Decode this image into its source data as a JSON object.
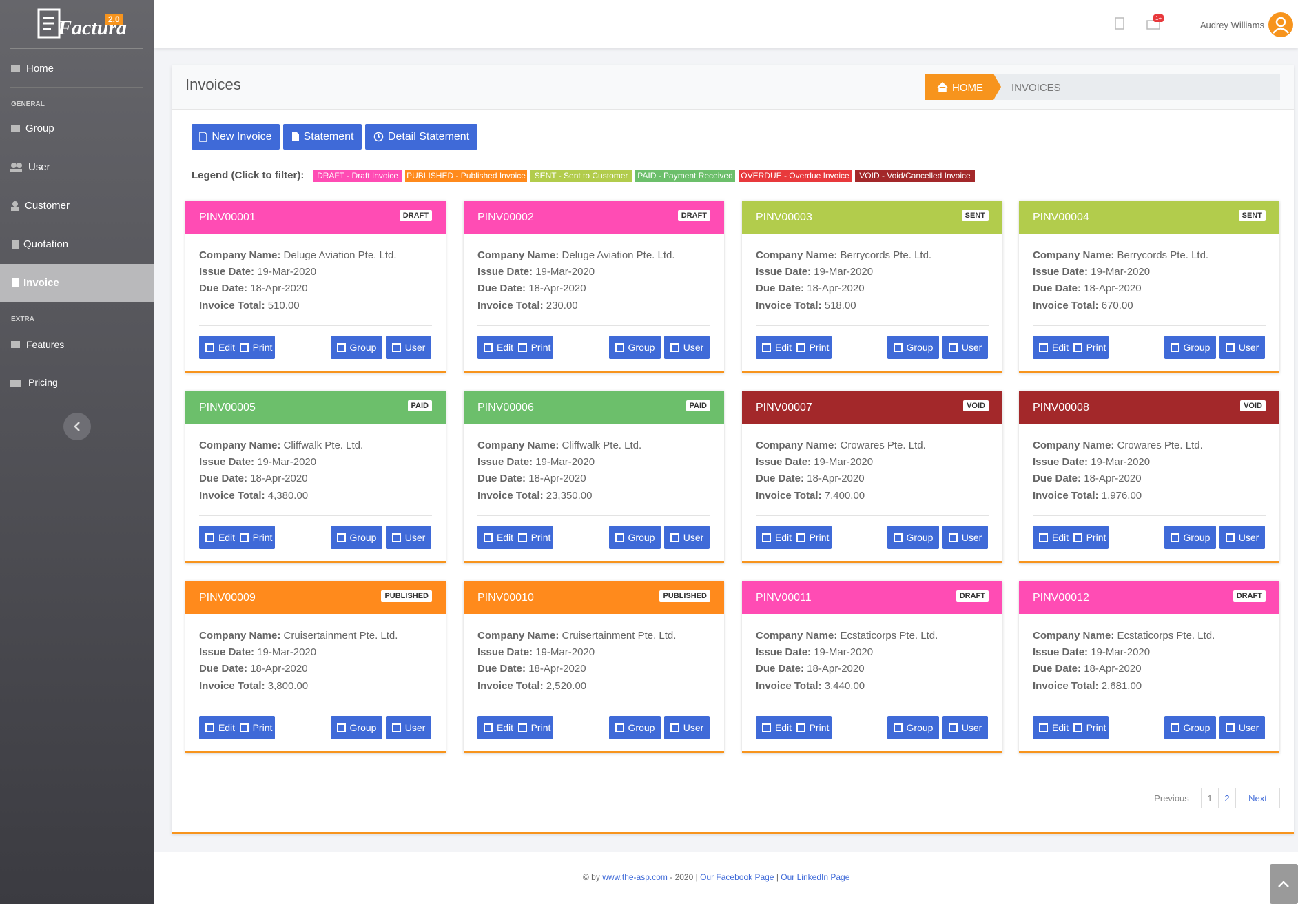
{
  "sidebar": {
    "logo": "Factura",
    "version": "2.0",
    "home": "Home",
    "general": {
      "title": "GENERAL",
      "items": [
        "Group",
        "User",
        "Customer",
        "Quotation",
        "Invoice"
      ]
    },
    "extra": {
      "title": "EXTRA",
      "items": [
        "Features",
        "Pricing"
      ]
    }
  },
  "topbar": {
    "notification_badge": "1+",
    "user_name": "Audrey Williams"
  },
  "header": {
    "title": "Invoices",
    "breadcrumb": [
      "HOME",
      "INVOICES"
    ]
  },
  "actions": [
    "New Invoice",
    "Statement",
    "Detail Statement"
  ],
  "legend": {
    "title": "Legend (Click to filter):",
    "items": [
      {
        "label": "DRAFT - Draft Invoice",
        "color": "#ff4cb4"
      },
      {
        "label": "PUBLISHED - Published Invoice",
        "color": "#ff8a1c"
      },
      {
        "label": "SENT - Sent to Customer",
        "color": "#b2cc4c"
      },
      {
        "label": "PAID - Payment Received",
        "color": "#6cbf6b"
      },
      {
        "label": "OVERDUE - Overdue Invoice",
        "color": "#e8393c"
      },
      {
        "label": "VOID - Void/Cancelled Invoice",
        "color": "#a3282a"
      }
    ]
  },
  "field_labels": [
    "Company Name:",
    "Issue Date:",
    "Due Date:",
    "Invoice Total:"
  ],
  "card_buttons": [
    "Edit",
    "Print",
    "Group",
    "User"
  ],
  "invoices": [
    {
      "id": "PINV00001",
      "status": "DRAFT",
      "color": "#ff4cb4",
      "fields": [
        "Deluge Aviation Pte. Ltd.",
        "19-Mar-2020",
        "18-Apr-2020",
        "510.00"
      ]
    },
    {
      "id": "PINV00002",
      "status": "DRAFT",
      "color": "#ff4cb4",
      "fields": [
        "Deluge Aviation Pte. Ltd.",
        "19-Mar-2020",
        "18-Apr-2020",
        "230.00"
      ]
    },
    {
      "id": "PINV00003",
      "status": "SENT",
      "color": "#b2cc4c",
      "fields": [
        "Berrycords Pte. Ltd.",
        "19-Mar-2020",
        "18-Apr-2020",
        "518.00"
      ]
    },
    {
      "id": "PINV00004",
      "status": "SENT",
      "color": "#b2cc4c",
      "fields": [
        "Berrycords Pte. Ltd.",
        "19-Mar-2020",
        "18-Apr-2020",
        "670.00"
      ]
    },
    {
      "id": "PINV00005",
      "status": "PAID",
      "color": "#6cbf6b",
      "fields": [
        "Cliffwalk Pte. Ltd.",
        "19-Mar-2020",
        "18-Apr-2020",
        "4,380.00"
      ]
    },
    {
      "id": "PINV00006",
      "status": "PAID",
      "color": "#6cbf6b",
      "fields": [
        "Cliffwalk Pte. Ltd.",
        "19-Mar-2020",
        "18-Apr-2020",
        "23,350.00"
      ]
    },
    {
      "id": "PINV00007",
      "status": "VOID",
      "color": "#a3282a",
      "fields": [
        "Crowares Pte. Ltd.",
        "19-Mar-2020",
        "18-Apr-2020",
        "7,400.00"
      ]
    },
    {
      "id": "PINV00008",
      "status": "VOID",
      "color": "#a3282a",
      "fields": [
        "Crowares Pte. Ltd.",
        "19-Mar-2020",
        "18-Apr-2020",
        "1,976.00"
      ]
    },
    {
      "id": "PINV00009",
      "status": "PUBLISHED",
      "color": "#ff8a1c",
      "fields": [
        "Cruisertainment Pte. Ltd.",
        "19-Mar-2020",
        "18-Apr-2020",
        "3,800.00"
      ]
    },
    {
      "id": "PINV00010",
      "status": "PUBLISHED",
      "color": "#ff8a1c",
      "fields": [
        "Cruisertainment Pte. Ltd.",
        "19-Mar-2020",
        "18-Apr-2020",
        "2,520.00"
      ]
    },
    {
      "id": "PINV00011",
      "status": "DRAFT",
      "color": "#ff4cb4",
      "fields": [
        "Ecstaticorps Pte. Ltd.",
        "19-Mar-2020",
        "18-Apr-2020",
        "3,440.00"
      ]
    },
    {
      "id": "PINV00012",
      "status": "DRAFT",
      "color": "#ff4cb4",
      "fields": [
        "Ecstaticorps Pte. Ltd.",
        "19-Mar-2020",
        "18-Apr-2020",
        "2,681.00"
      ]
    }
  ],
  "pagination": {
    "previous": "Previous",
    "pages": [
      1,
      2
    ],
    "next": "Next"
  },
  "footer": {
    "prefix": "© by",
    "site": "www.the-asp.com",
    "year": "- 2020 |",
    "facebook": "Our Facebook Page",
    "separator": "|",
    "linkedin": "Our LinkedIn Page"
  }
}
